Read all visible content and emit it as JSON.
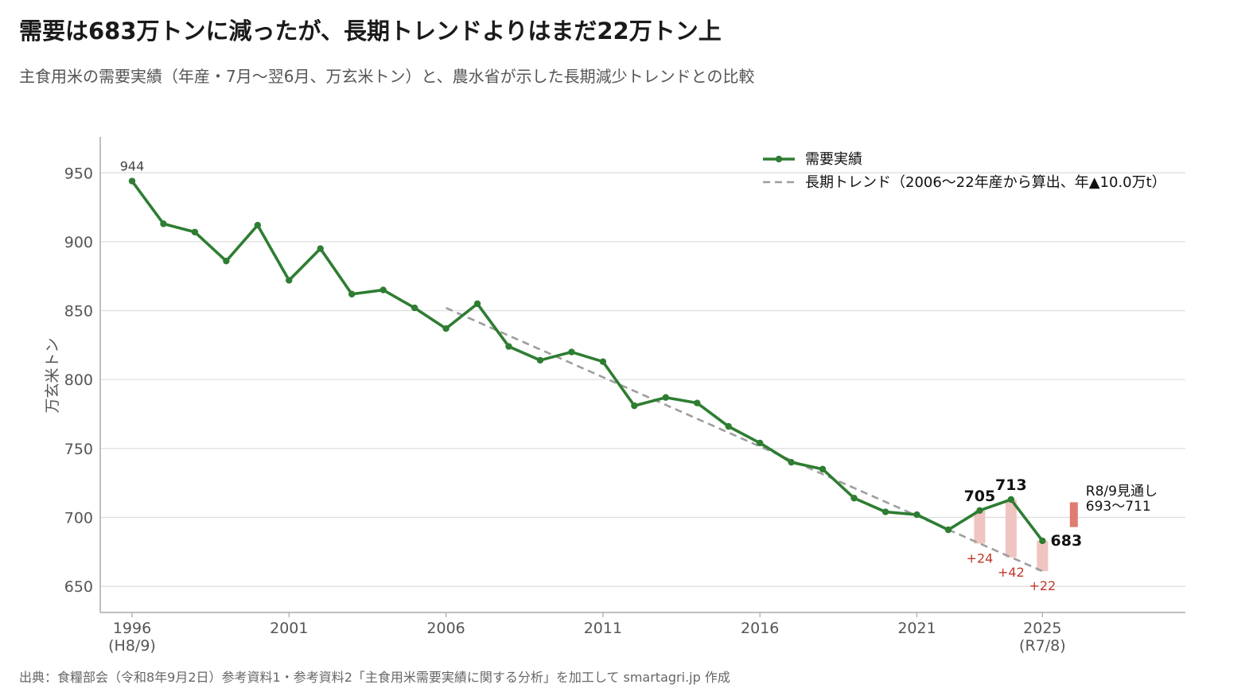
{
  "title": "需要は683万トンに減ったが、長期トレンドよりはまだ22万トン上",
  "subtitle": "主食用米の需要実績（年産・7月〜翌6月、万玄米トン）と、農水省が示した長期減少トレンドとの比較",
  "source": "出典：食糧部会（令和8年9月2日）参考資料1・参考資料2「主食用米需要実績に関する分析」を加工して smartagri.jp 作成",
  "chart_data": {
    "type": "line",
    "ylabel": "万玄米トン",
    "xlim": [
      1996,
      2029
    ],
    "ylim": [
      630,
      975
    ],
    "yticks": [
      650,
      700,
      750,
      800,
      850,
      900,
      950
    ],
    "xticks": [
      {
        "value": 1996,
        "label": "1996",
        "sub": "(H8/9)"
      },
      {
        "value": 2001,
        "label": "2001",
        "sub": ""
      },
      {
        "value": 2006,
        "label": "2006",
        "sub": ""
      },
      {
        "value": 2011,
        "label": "2011",
        "sub": ""
      },
      {
        "value": 2016,
        "label": "2016",
        "sub": ""
      },
      {
        "value": 2021,
        "label": "2021",
        "sub": ""
      },
      {
        "value": 2025,
        "label": "2025",
        "sub": "(R7/8)"
      }
    ],
    "grid": true,
    "legend_position": "top-right",
    "series": [
      {
        "name": "需要実績",
        "color": "#2e7d32",
        "style": "solid-with-markers",
        "x": [
          1996,
          1997,
          1998,
          1999,
          2000,
          2001,
          2002,
          2003,
          2004,
          2005,
          2006,
          2007,
          2008,
          2009,
          2010,
          2011,
          2012,
          2013,
          2014,
          2015,
          2016,
          2017,
          2018,
          2019,
          2020,
          2021,
          2022,
          2023,
          2024,
          2025
        ],
        "values": [
          944,
          913,
          907,
          886,
          912,
          872,
          895,
          862,
          865,
          852,
          837,
          855,
          824,
          814,
          820,
          813,
          781,
          787,
          783,
          766,
          754,
          740,
          735,
          714,
          704,
          702,
          691,
          705,
          713,
          683
        ]
      },
      {
        "name": "長期トレンド（2006〜22年産から算出、年▲10.0万t）",
        "color": "#9e9e9e",
        "style": "dashed",
        "x": [
          2006,
          2025
        ],
        "values": [
          852,
          661
        ]
      }
    ],
    "point_labels": [
      {
        "x": 1996,
        "text": "944",
        "bold": false
      },
      {
        "x": 2023,
        "text": "705",
        "bold": true
      },
      {
        "x": 2024,
        "text": "713",
        "bold": true
      },
      {
        "x": 2025,
        "text": "683",
        "bold": true
      }
    ],
    "gap_bars": [
      {
        "x": 2023,
        "actual": 705,
        "trend": 681,
        "label": "+24"
      },
      {
        "x": 2024,
        "actual": 713,
        "trend": 671,
        "label": "+42"
      },
      {
        "x": 2025,
        "actual": 683,
        "trend": 661,
        "label": "+22"
      }
    ],
    "outlook": {
      "x": 2026,
      "low": 693,
      "high": 711,
      "color": "#e07b72",
      "label_line1": "R8/9見通し",
      "label_line2": "693〜711"
    },
    "gap_color": "#f0c4c0",
    "gap_label_color": "#c0392b"
  }
}
